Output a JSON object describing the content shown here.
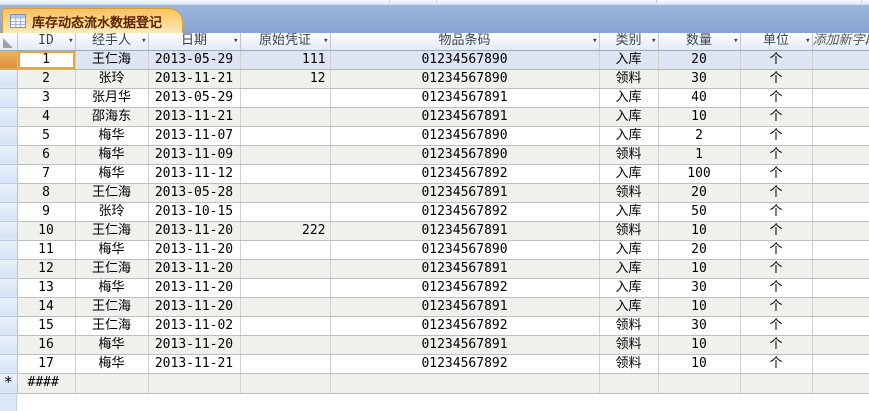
{
  "tab": {
    "title": "库存动态流水数据登记",
    "icon": "datasheet-table-icon"
  },
  "table": {
    "columns": [
      {
        "key": "id",
        "label": "ID",
        "has_filter": true
      },
      {
        "key": "handler",
        "label": "经手人",
        "has_filter": true
      },
      {
        "key": "date",
        "label": "日期",
        "has_filter": true
      },
      {
        "key": "voucher",
        "label": "原始凭证",
        "has_filter": true
      },
      {
        "key": "barcode",
        "label": "物品条码",
        "has_filter": true
      },
      {
        "key": "category",
        "label": "类别",
        "has_filter": true
      },
      {
        "key": "qty",
        "label": "数量",
        "has_filter": true
      },
      {
        "key": "unit",
        "label": "单位",
        "has_filter": true
      },
      {
        "key": "newfield",
        "label": "添加新字段",
        "has_filter": false
      }
    ],
    "filter_arrow_glyph": "▾",
    "rows": [
      {
        "id": "1",
        "handler": "王仁海",
        "date": "2013-05-29",
        "voucher": "111",
        "barcode": "01234567890",
        "category": "入库",
        "qty": "20",
        "unit": "个",
        "newfield": ""
      },
      {
        "id": "2",
        "handler": "张玲",
        "date": "2013-11-21",
        "voucher": "12",
        "barcode": "01234567890",
        "category": "领料",
        "qty": "30",
        "unit": "个",
        "newfield": ""
      },
      {
        "id": "3",
        "handler": "张月华",
        "date": "2013-05-29",
        "voucher": "",
        "barcode": "01234567891",
        "category": "入库",
        "qty": "40",
        "unit": "个",
        "newfield": ""
      },
      {
        "id": "4",
        "handler": "邵海东",
        "date": "2013-11-21",
        "voucher": "",
        "barcode": "01234567891",
        "category": "入库",
        "qty": "10",
        "unit": "个",
        "newfield": ""
      },
      {
        "id": "5",
        "handler": "梅华",
        "date": "2013-11-07",
        "voucher": "",
        "barcode": "01234567890",
        "category": "入库",
        "qty": "2",
        "unit": "个",
        "newfield": ""
      },
      {
        "id": "6",
        "handler": "梅华",
        "date": "2013-11-09",
        "voucher": "",
        "barcode": "01234567890",
        "category": "领料",
        "qty": "1",
        "unit": "个",
        "newfield": ""
      },
      {
        "id": "7",
        "handler": "梅华",
        "date": "2013-11-12",
        "voucher": "",
        "barcode": "01234567892",
        "category": "入库",
        "qty": "100",
        "unit": "个",
        "newfield": ""
      },
      {
        "id": "8",
        "handler": "王仁海",
        "date": "2013-05-28",
        "voucher": "",
        "barcode": "01234567891",
        "category": "领料",
        "qty": "20",
        "unit": "个",
        "newfield": ""
      },
      {
        "id": "9",
        "handler": "张玲",
        "date": "2013-10-15",
        "voucher": "",
        "barcode": "01234567892",
        "category": "入库",
        "qty": "50",
        "unit": "个",
        "newfield": ""
      },
      {
        "id": "10",
        "handler": "王仁海",
        "date": "2013-11-20",
        "voucher": "222",
        "barcode": "01234567891",
        "category": "领料",
        "qty": "10",
        "unit": "个",
        "newfield": ""
      },
      {
        "id": "11",
        "handler": "梅华",
        "date": "2013-11-20",
        "voucher": "",
        "barcode": "01234567890",
        "category": "入库",
        "qty": "20",
        "unit": "个",
        "newfield": ""
      },
      {
        "id": "12",
        "handler": "王仁海",
        "date": "2013-11-20",
        "voucher": "",
        "barcode": "01234567891",
        "category": "入库",
        "qty": "10",
        "unit": "个",
        "newfield": ""
      },
      {
        "id": "13",
        "handler": "梅华",
        "date": "2013-11-20",
        "voucher": "",
        "barcode": "01234567892",
        "category": "入库",
        "qty": "30",
        "unit": "个",
        "newfield": ""
      },
      {
        "id": "14",
        "handler": "王仁海",
        "date": "2013-11-20",
        "voucher": "",
        "barcode": "01234567891",
        "category": "入库",
        "qty": "10",
        "unit": "个",
        "newfield": ""
      },
      {
        "id": "15",
        "handler": "王仁海",
        "date": "2013-11-02",
        "voucher": "",
        "barcode": "01234567892",
        "category": "领料",
        "qty": "30",
        "unit": "个",
        "newfield": ""
      },
      {
        "id": "16",
        "handler": "梅华",
        "date": "2013-11-20",
        "voucher": "",
        "barcode": "01234567891",
        "category": "领料",
        "qty": "10",
        "unit": "个",
        "newfield": ""
      },
      {
        "id": "17",
        "handler": "梅华",
        "date": "2013-11-21",
        "voucher": "",
        "barcode": "01234567892",
        "category": "领料",
        "qty": "10",
        "unit": "个",
        "newfield": ""
      }
    ],
    "current_row_index": 0,
    "new_row": {
      "selector_glyph": "*",
      "id_display": "####"
    }
  },
  "colors": {
    "tab_bar_bg": "#8fadd9",
    "active_tab_top": "#fbc25e",
    "active_tab_border": "#dd9b37",
    "tab_text": "#5c2300",
    "current_row_bg": "#dde4f2",
    "active_cell_border": "#e7a439",
    "current_selector": "#d8903a",
    "alt_row_bg": "#f0f0ed",
    "header_gradient_bottom": "#e3eaf4"
  }
}
